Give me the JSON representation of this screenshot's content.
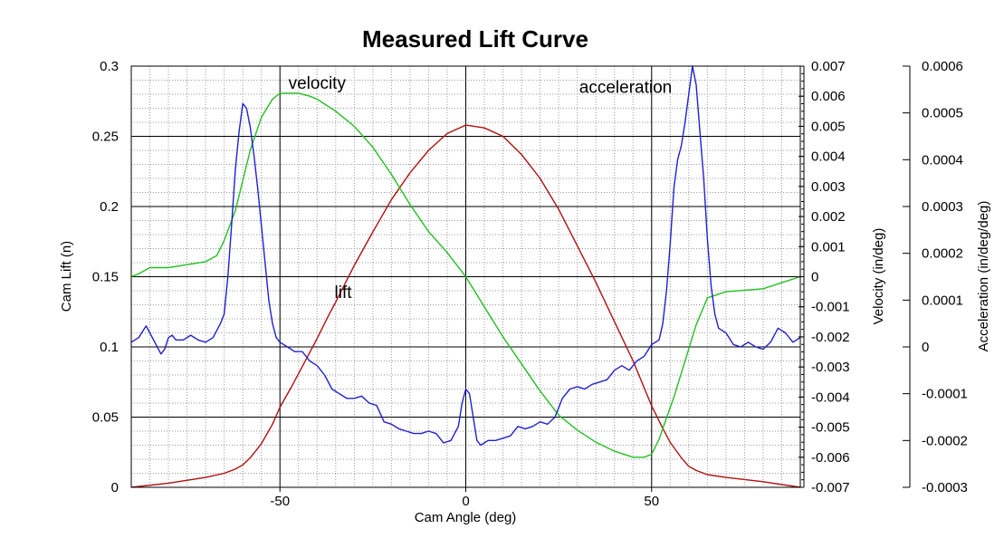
{
  "chart_data": {
    "type": "line",
    "title": "Measured Lift Curve",
    "xlabel": "Cam Angle (deg)",
    "xlim": [
      -90,
      90
    ],
    "xticks": [
      -50,
      0,
      50
    ],
    "grid": true,
    "axes": {
      "lift": {
        "label": "Cam Lift (n)",
        "lim": [
          0,
          0.3
        ],
        "ticks": [
          0,
          0.05,
          0.1,
          0.15,
          0.2,
          0.25,
          0.3
        ],
        "tick_labels": [
          "0",
          "0.05",
          "0.1",
          "0.15",
          "0.2",
          "0.25",
          "0.3"
        ]
      },
      "velocity": {
        "label": "Velocity (in/deg)",
        "lim": [
          -0.007,
          0.007
        ],
        "ticks": [
          -0.007,
          -0.006,
          -0.005,
          -0.004,
          -0.003,
          -0.002,
          -0.001,
          0,
          0.001,
          0.002,
          0.003,
          0.004,
          0.005,
          0.006,
          0.007
        ],
        "tick_labels": [
          "-0.007",
          "-0.006",
          "-0.005",
          "-0.004",
          "-0.003",
          "-0.002",
          "-0.001",
          "0",
          "0.001",
          "0.002",
          "0.003",
          "0.004",
          "0.005",
          "0.006",
          "0.007"
        ]
      },
      "acceleration": {
        "label": "Acceleration (in/deg/deg)",
        "lim": [
          -0.0003,
          0.0006
        ],
        "ticks": [
          -0.0003,
          -0.0002,
          -0.0001,
          0,
          0.0001,
          0.0002,
          0.0003,
          0.0004,
          0.0005,
          0.0006
        ],
        "tick_labels": [
          "-0.0003",
          "-0.0002",
          "-0.0001",
          "0",
          "0.0001",
          "0.0002",
          "0.0003",
          "0.0004",
          "0.0005",
          "0.0006"
        ]
      }
    },
    "annotations": [
      {
        "text": "velocity",
        "x": -40,
        "y": 0.284,
        "axis": "lift"
      },
      {
        "text": "acceleration",
        "x": 43,
        "y": 0.281,
        "axis": "lift"
      },
      {
        "text": "lift",
        "x": -33,
        "y": 0.135,
        "axis": "lift"
      }
    ],
    "series": [
      {
        "name": "lift",
        "axis": "lift",
        "color": "#b01010",
        "x": [
          -90,
          -80,
          -70,
          -65,
          -62,
          -60,
          -58,
          -55,
          -52,
          -50,
          -47,
          -45,
          -42,
          -40,
          -37,
          -35,
          -30,
          -25,
          -20,
          -15,
          -10,
          -5,
          0,
          5,
          10,
          15,
          20,
          25,
          30,
          35,
          40,
          45,
          50,
          53,
          55,
          58,
          60,
          62,
          65,
          70,
          80,
          90
        ],
        "y": [
          0.0,
          0.003,
          0.007,
          0.01,
          0.013,
          0.016,
          0.021,
          0.031,
          0.045,
          0.057,
          0.071,
          0.081,
          0.096,
          0.106,
          0.122,
          0.132,
          0.158,
          0.182,
          0.205,
          0.224,
          0.24,
          0.252,
          0.258,
          0.256,
          0.25,
          0.237,
          0.22,
          0.198,
          0.172,
          0.146,
          0.118,
          0.09,
          0.058,
          0.042,
          0.032,
          0.021,
          0.015,
          0.012,
          0.009,
          0.007,
          0.004,
          0.0
        ]
      },
      {
        "name": "velocity",
        "axis": "velocity",
        "color": "#22c022",
        "x": [
          -90,
          -88,
          -85,
          -80,
          -75,
          -70,
          -67,
          -65,
          -62,
          -60,
          -58,
          -55,
          -52,
          -50,
          -48,
          -45,
          -42,
          -40,
          -35,
          -30,
          -25,
          -20,
          -15,
          -10,
          -5,
          0,
          5,
          10,
          15,
          20,
          25,
          30,
          35,
          40,
          45,
          48,
          50,
          52,
          54,
          56,
          58,
          60,
          62,
          65,
          70,
          80,
          85,
          90
        ],
        "y": [
          0.0,
          0.0001,
          0.0003,
          0.0003,
          0.0004,
          0.0005,
          0.0007,
          0.0012,
          0.0022,
          0.0032,
          0.0042,
          0.0053,
          0.0059,
          0.0061,
          0.0061,
          0.0061,
          0.006,
          0.0059,
          0.0055,
          0.005,
          0.0043,
          0.0034,
          0.0024,
          0.0015,
          0.0008,
          0.0,
          -0.001,
          -0.002,
          -0.0029,
          -0.0038,
          -0.0046,
          -0.0051,
          -0.0055,
          -0.0058,
          -0.006,
          -0.006,
          -0.0059,
          -0.0054,
          -0.0047,
          -0.004,
          -0.0032,
          -0.0024,
          -0.0016,
          -0.0007,
          -0.0005,
          -0.0004,
          -0.0002,
          0.0
        ]
      },
      {
        "name": "acceleration",
        "axis": "acceleration",
        "color": "#2020d0",
        "x": [
          -90,
          -88,
          -86,
          -85,
          -84,
          -82,
          -81,
          -80,
          -79,
          -78,
          -76,
          -74,
          -72,
          -70,
          -68,
          -66,
          -65,
          -64,
          -63,
          -62,
          -61,
          -60,
          -59,
          -58,
          -57,
          -56,
          -55,
          -54,
          -53,
          -52,
          -51,
          -50,
          -48,
          -46,
          -44,
          -42,
          -40,
          -38,
          -36,
          -34,
          -32,
          -30,
          -28,
          -26,
          -24,
          -22,
          -20,
          -18,
          -16,
          -14,
          -12,
          -10,
          -8,
          -6,
          -4,
          -2,
          -1,
          0,
          1,
          2,
          3,
          4,
          6,
          8,
          10,
          12,
          14,
          16,
          18,
          20,
          22,
          24,
          26,
          28,
          30,
          32,
          34,
          36,
          38,
          40,
          42,
          44,
          46,
          48,
          50,
          52,
          53,
          54,
          55,
          56,
          57,
          58,
          59,
          60,
          61,
          62,
          63,
          64,
          65,
          66,
          67,
          68,
          70,
          72,
          74,
          76,
          78,
          80,
          82,
          84,
          86,
          88,
          90
        ],
        "y": [
          1e-05,
          2e-05,
          4.5e-05,
          3e-05,
          1.5e-05,
          -1.5e-05,
          -5e-06,
          2e-05,
          2.5e-05,
          1.5e-05,
          1.5e-05,
          2.5e-05,
          1.5e-05,
          1e-05,
          2e-05,
          5e-05,
          7e-05,
          0.00015,
          0.00026,
          0.00038,
          0.00046,
          0.00052,
          0.00051,
          0.00047,
          0.00041,
          0.00034,
          0.00026,
          0.00018,
          0.0001,
          5e-05,
          2e-05,
          1e-05,
          0.0,
          -1e-05,
          -1e-05,
          -3e-05,
          -4e-05,
          -6e-05,
          -9e-05,
          -0.0001,
          -0.00011,
          -0.00011,
          -0.000105,
          -0.00012,
          -0.000125,
          -0.00016,
          -0.000165,
          -0.000175,
          -0.00018,
          -0.000185,
          -0.000185,
          -0.00018,
          -0.000185,
          -0.000205,
          -0.0002,
          -0.00017,
          -0.00012,
          -9e-05,
          -0.0001,
          -0.00015,
          -0.0002,
          -0.00021,
          -0.0002,
          -0.0002,
          -0.000195,
          -0.00019,
          -0.00017,
          -0.000175,
          -0.00017,
          -0.00016,
          -0.000165,
          -0.00015,
          -0.00011,
          -9e-05,
          -8.5e-05,
          -9e-05,
          -8e-05,
          -7.5e-05,
          -7e-05,
          -5e-05,
          -4e-05,
          -5e-05,
          -3e-05,
          -2e-05,
          5e-06,
          1.5e-05,
          5e-05,
          0.00012,
          0.00022,
          0.00034,
          0.0004,
          0.00043,
          0.00048,
          0.00054,
          0.0006,
          0.00056,
          0.00046,
          0.00036,
          0.00023,
          0.00013,
          7e-05,
          4e-05,
          3e-05,
          5e-06,
          0.0,
          1e-05,
          0.0,
          -5e-06,
          1e-05,
          4e-05,
          3e-05,
          1e-05,
          2e-05
        ]
      }
    ]
  }
}
